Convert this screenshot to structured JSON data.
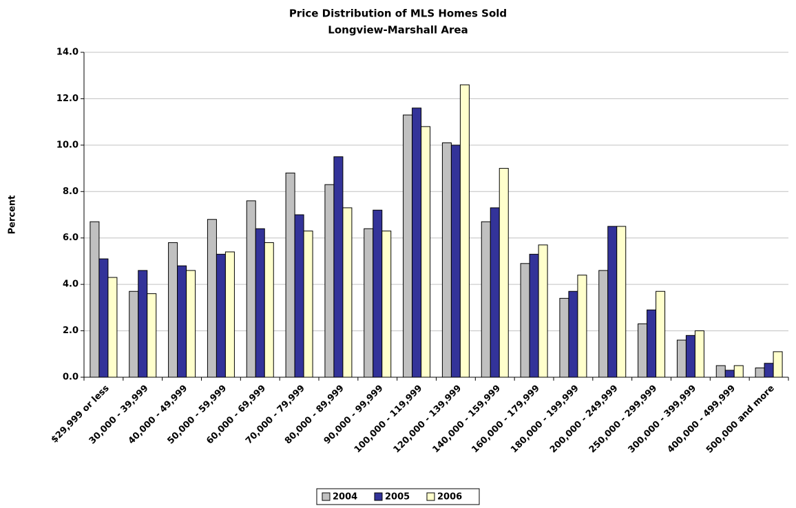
{
  "chart_data": {
    "type": "bar",
    "title": "Price Distribution of MLS Homes Sold",
    "subtitle": "Longview-Marshall Area",
    "y_label": "Percent",
    "categories": [
      "$29,999 or less",
      "30,000 - 39,999",
      "40,000 - 49,999",
      "50,000 - 59,999",
      "60,000 - 69,999",
      "70,000 - 79,999",
      "80,000 - 89,999",
      "90,000 - 99,999",
      "100,000 - 119,999",
      "120,000 - 139,999",
      "140,000 - 159,999",
      "160,000 - 179,999",
      "180,000 - 199,999",
      "200,000 - 249,999",
      "250,000 - 299,999",
      "300,000 - 399,999",
      "400,000 - 499,999",
      "500,000 and more"
    ],
    "series": [
      {
        "name": "2004",
        "color": "#c0c0c0",
        "values": [
          6.7,
          3.7,
          5.8,
          6.8,
          7.6,
          8.8,
          8.3,
          6.4,
          11.3,
          10.1,
          6.7,
          4.9,
          3.4,
          4.6,
          2.3,
          1.6,
          0.5,
          0.4
        ]
      },
      {
        "name": "2005",
        "color": "#333399",
        "values": [
          5.1,
          4.6,
          4.8,
          5.3,
          6.4,
          7.0,
          9.5,
          7.2,
          11.6,
          10.0,
          7.3,
          5.3,
          3.7,
          6.5,
          2.9,
          1.8,
          0.3,
          0.6
        ]
      },
      {
        "name": "2006",
        "color": "#ffffcc",
        "values": [
          4.3,
          3.6,
          4.6,
          5.4,
          5.8,
          6.3,
          7.3,
          6.3,
          10.8,
          12.6,
          9.0,
          5.7,
          4.4,
          6.5,
          3.7,
          2.0,
          0.5,
          1.1
        ]
      }
    ],
    "ylim": [
      0,
      14
    ],
    "yticks": [
      {
        "value": 0,
        "label": "0.0"
      },
      {
        "value": 2,
        "label": "2.0"
      },
      {
        "value": 4,
        "label": "4.0"
      },
      {
        "value": 6,
        "label": "6.0"
      },
      {
        "value": 8,
        "label": "8.0"
      },
      {
        "value": 10,
        "label": "10.0"
      },
      {
        "value": 12,
        "label": "12.0"
      },
      {
        "value": 14,
        "label": "14.0"
      }
    ],
    "grid": true,
    "legend": "bottom"
  }
}
